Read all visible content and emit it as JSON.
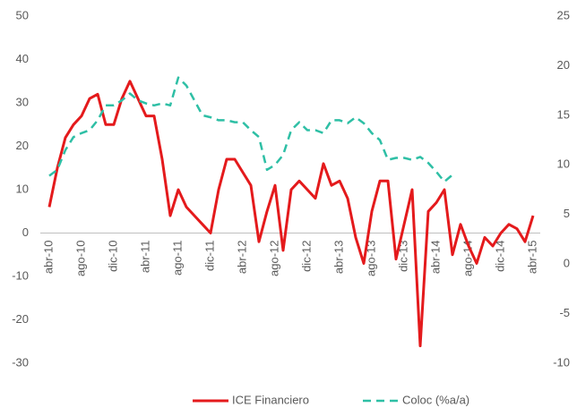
{
  "chart_data": {
    "type": "line",
    "categories": [
      "abr-10",
      null,
      null,
      null,
      "ago-10",
      null,
      null,
      null,
      "dic-10",
      null,
      null,
      null,
      "abr-11",
      null,
      null,
      null,
      "ago-11",
      null,
      null,
      null,
      "dic-11",
      null,
      null,
      null,
      "abr-12",
      null,
      null,
      null,
      "ago-12",
      null,
      null,
      null,
      "dic-12",
      null,
      null,
      null,
      "abr-13",
      null,
      null,
      null,
      "ago-13",
      null,
      null,
      null,
      "dic-13",
      null,
      null,
      null,
      "abr-14",
      null,
      null,
      null,
      "ago-14",
      null,
      null,
      null,
      "dic-14",
      null,
      null,
      null,
      "abr-15"
    ],
    "series": [
      {
        "name": "ICE Financiero",
        "color": "#e41a1c",
        "axis": "y",
        "values": [
          6,
          15,
          22,
          25,
          27,
          31,
          32,
          25,
          25,
          31,
          35,
          31,
          27,
          27,
          17,
          4,
          10,
          6,
          4,
          2,
          0,
          10,
          17,
          17,
          14,
          11,
          -2,
          5,
          11,
          -4,
          10,
          12,
          10,
          8,
          16,
          11,
          12,
          8,
          -1,
          -7,
          5,
          12,
          12,
          -6,
          2,
          10,
          -26,
          5,
          7,
          10,
          -5,
          2,
          -3,
          -7,
          -1,
          -3,
          0,
          2,
          1,
          -2,
          4
        ]
      },
      {
        "name": "Coloc (%a/a)",
        "color": "#2ebfa5",
        "axis": "y2",
        "dashed": true,
        "values": [
          8.9,
          9.5,
          11.5,
          12.8,
          13.2,
          13.5,
          14.5,
          16,
          16,
          16.5,
          17.2,
          16.5,
          16.2,
          16,
          16.2,
          16,
          18.8,
          18,
          16.5,
          15,
          14.8,
          14.5,
          14.5,
          14.3,
          14.3,
          13.5,
          12.8,
          9.5,
          10,
          11,
          13.5,
          14.3,
          13.5,
          13.5,
          13.2,
          14.5,
          14.5,
          14.2,
          14.8,
          14.2,
          13.2,
          12.5,
          10.5,
          10.7,
          10.7,
          10.5,
          10.8,
          10.2,
          9.3,
          8.3,
          9,
          null,
          null,
          null,
          null,
          null,
          null,
          null,
          null,
          null,
          null
        ]
      }
    ],
    "ylim": [
      -30,
      50
    ],
    "yticks": [
      -30,
      -20,
      -10,
      0,
      10,
      20,
      30,
      40,
      50
    ],
    "y2lim": [
      -10,
      25
    ],
    "y2ticks": [
      -10,
      -5,
      0,
      5,
      10,
      15,
      20,
      25
    ],
    "legend": "bottom"
  }
}
